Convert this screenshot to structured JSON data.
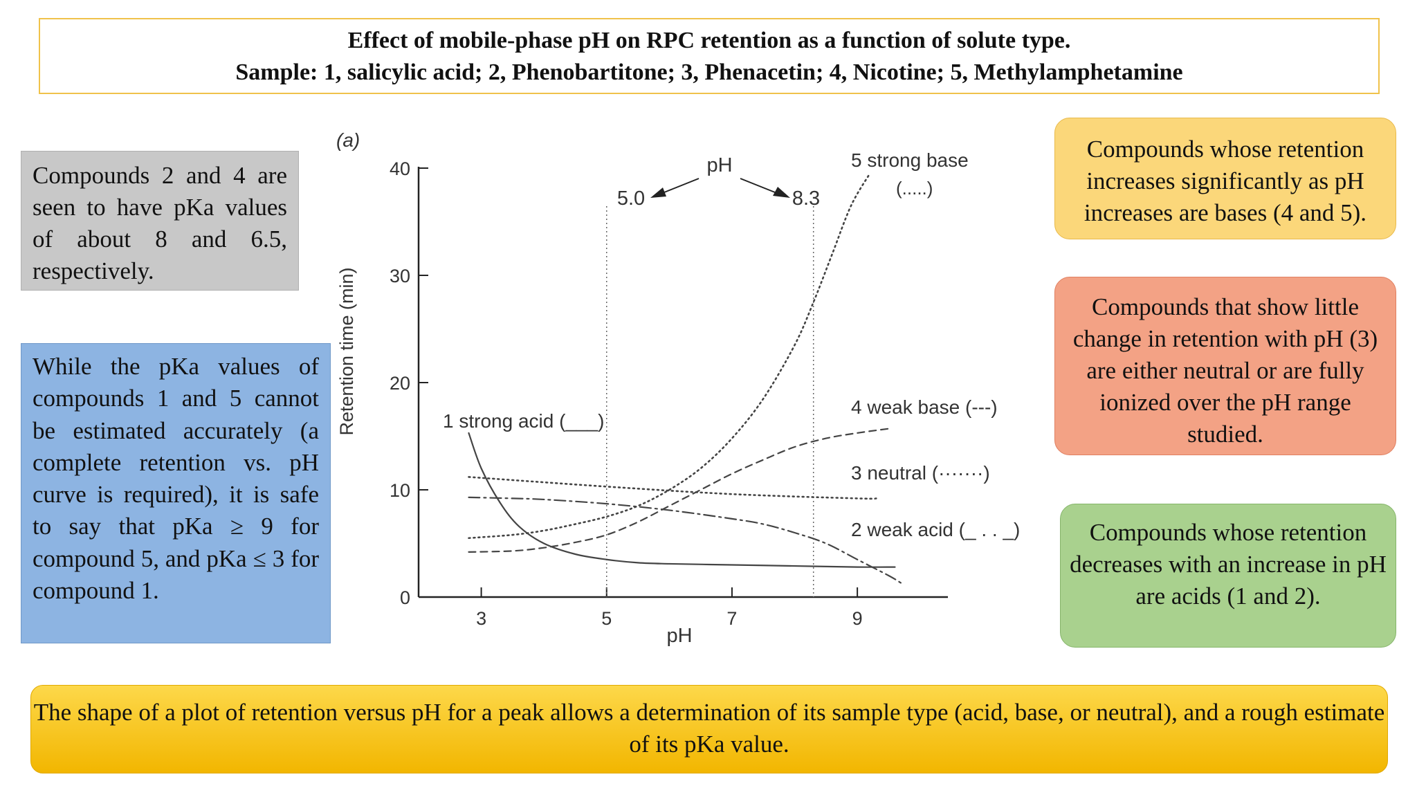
{
  "title": {
    "line1": "Effect of mobile-phase pH on RPC retention as a function of solute type.",
    "line2": "Sample: 1, salicylic acid; 2, Phenobartitone; 3, Phenacetin; 4, Nicotine; 5, Methylamphetamine"
  },
  "notes": {
    "gray": "Compounds 2 and 4 are seen to have pKa values of about 8 and 6.5, respectively.",
    "blue": "While the pKa values of compounds 1 and 5 cannot be estimated accurately (a complete retention vs. pH curve is required), it is safe to say that pKa ≥ 9 for compound 5, and pKa ≤ 3 for compound 1.",
    "yellow": "Compounds whose retention increases significantly as pH increases are bases (4 and 5).",
    "red": "Compounds that show little change in retention with pH (3) are either neutral or are fully ionized over the pH range studied.",
    "green": "Compounds whose retention decreases with an increase in pH are acids (1 and 2)."
  },
  "bottom_note": "The shape of a plot of retention versus pH for a peak allows a determination of its sample type (acid, base, or neutral), and a rough estimate of its pKa value.",
  "chart_data": {
    "type": "line",
    "panel_label": "(a)",
    "xlabel": "pH",
    "ylabel": "Retention time (min)",
    "xlim": [
      2,
      10.5
    ],
    "ylim": [
      0,
      40
    ],
    "xticks": [
      3,
      5,
      7,
      9
    ],
    "yticks": [
      0,
      10,
      20,
      30,
      40
    ],
    "grid": false,
    "annotation": {
      "label": "pH",
      "left_value": "5.0",
      "right_value": "8.3",
      "vlines": [
        5.0,
        8.3
      ]
    },
    "series": [
      {
        "name": "1 strong acid (",
        "legend_style": "___)",
        "dash": "solid",
        "x": [
          2.8,
          3.0,
          3.3,
          3.6,
          4.0,
          4.5,
          5.0,
          5.5,
          6.0,
          7.0,
          8.0,
          9.0,
          9.6
        ],
        "y": [
          15.3,
          12.0,
          8.8,
          6.6,
          5.0,
          4.0,
          3.5,
          3.2,
          3.1,
          3.0,
          2.9,
          2.8,
          2.8
        ]
      },
      {
        "name": "2 weak acid (",
        "legend_style": "_ . . _)",
        "dash": "dashdot",
        "x": [
          2.8,
          3.5,
          4.0,
          5.0,
          6.0,
          7.0,
          7.5,
          8.0,
          8.5,
          9.0,
          9.5,
          9.7
        ],
        "y": [
          9.3,
          9.2,
          9.1,
          8.7,
          8.1,
          7.3,
          6.8,
          6.0,
          5.0,
          3.5,
          2.0,
          1.3
        ]
      },
      {
        "name": "3 neutral (",
        "legend_style": "·······)",
        "dash": "dotted",
        "x": [
          2.8,
          5.0,
          7.0,
          9.0,
          9.3
        ],
        "y": [
          11.2,
          10.3,
          9.6,
          9.2,
          9.2
        ]
      },
      {
        "name": "4 weak base (",
        "legend_style": "---)",
        "dash": "dashed",
        "x": [
          2.8,
          3.5,
          4.0,
          4.5,
          5.0,
          5.5,
          6.0,
          6.5,
          7.0,
          7.5,
          8.0,
          8.5,
          9.0,
          9.5
        ],
        "y": [
          4.2,
          4.3,
          4.6,
          5.1,
          5.8,
          7.0,
          8.5,
          10.0,
          11.5,
          12.8,
          14.0,
          14.8,
          15.3,
          15.7
        ]
      },
      {
        "name": "5 strong base",
        "legend_style": "(.....)",
        "dash": "dotted",
        "x": [
          2.8,
          3.5,
          4.0,
          4.5,
          5.0,
          5.5,
          6.0,
          6.5,
          7.0,
          7.5,
          8.0,
          8.3,
          8.6,
          8.9,
          9.2
        ],
        "y": [
          5.5,
          5.8,
          6.2,
          6.8,
          7.5,
          8.5,
          10.0,
          12.0,
          14.8,
          18.5,
          23.5,
          27.5,
          32.0,
          36.5,
          39.5
        ]
      }
    ]
  }
}
